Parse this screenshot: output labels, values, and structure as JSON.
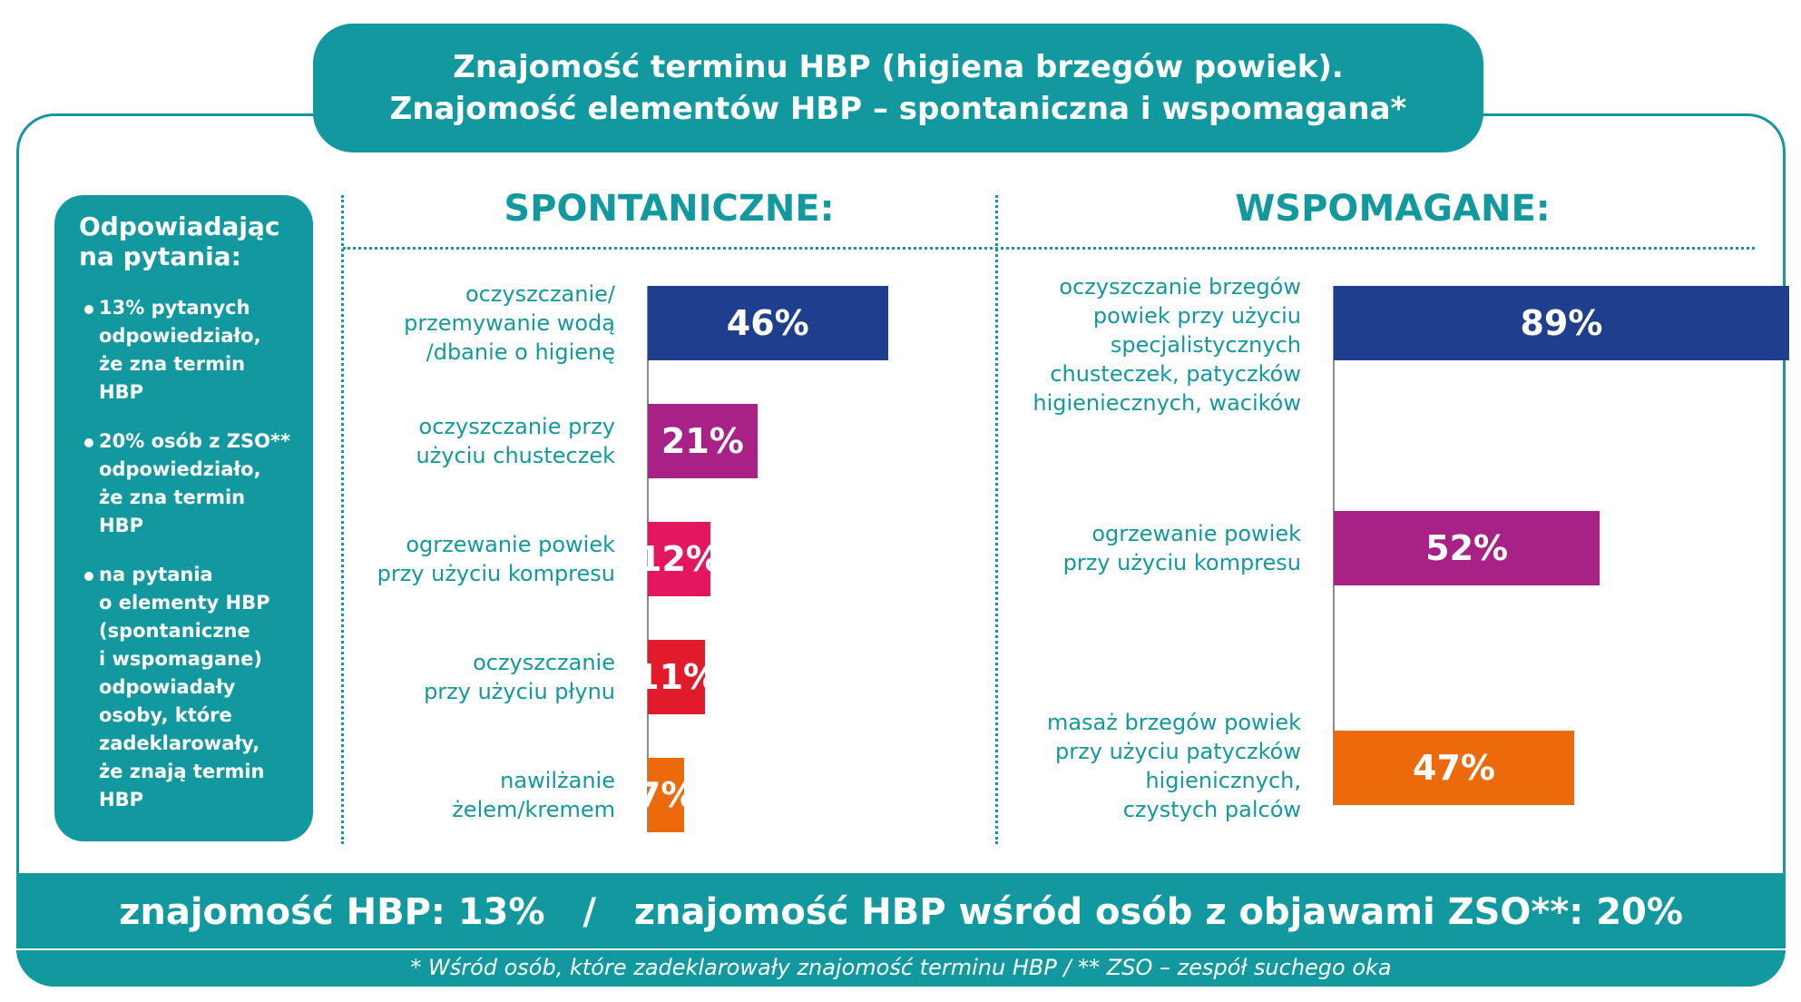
{
  "title": {
    "line1": "Znajomość terminu HBP (higiena brzegów powiek).",
    "line2": "Znajomość elementów HBP – spontaniczna i wspomagana*"
  },
  "sidebar": {
    "title": "Odpowiadając\nna pytania:",
    "items": [
      {
        "text": "13% pytanych\nodpowiedziało,\nże zna termin\nHBP"
      },
      {
        "text": "20% osób z ZSO**\nodpowiedziało,\nże zna termin\nHBP"
      },
      {
        "text": "na pytania\no elementy HBP\n(spontaniczne\ni wspomagane)\nodpowiadały\nosoby, które\nzadeklarowały,\nże znają termin\nHBP"
      }
    ]
  },
  "summary": "znajomość HBP: 13%   /   znajomość HBP wśród osób z objawami ZSO**: 20%",
  "footnote": "* Wśród osób, które zadeklarowały znajomość terminu HBP / ** ZSO – zespół suchego oka",
  "chart_data": [
    {
      "type": "bar",
      "orientation": "horizontal",
      "title": "SPONTANICZNE:",
      "unit": "%",
      "categories": [
        "oczyszczanie/\nprzemywanie wodą\n/dbanie o higienę",
        "oczyszczanie przy\nużyciu chusteczek",
        "ogrzewanie powiek\nprzy użyciu kompresu",
        "oczyszczanie\nprzy użyciu płynu",
        "nawilżanie\nżelem/kremem"
      ],
      "values": [
        46,
        21,
        12,
        11,
        7
      ],
      "value_labels": [
        "46%",
        "21%",
        "12%",
        "11%",
        "7%"
      ],
      "colors": [
        "#1d3f8e",
        "#a72186",
        "#e3165f",
        "#e11a2c",
        "#ec6a0c"
      ],
      "xlim": [
        0,
        100
      ]
    },
    {
      "type": "bar",
      "orientation": "horizontal",
      "title": "WSPOMAGANE:",
      "unit": "%",
      "categories": [
        "oczyszczanie brzegów\npowiek przy użyciu\nspecjalistycznych\nchusteczek, patyczków\nhigieniecznych, wacików",
        "ogrzewanie powiek\nprzy użyciu kompresu",
        "masaż brzegów powiek\nprzy użyciu patyczków\nhigienicznych,\nczystych palców"
      ],
      "values": [
        89,
        52,
        47
      ],
      "value_labels": [
        "89%",
        "52%",
        "47%"
      ],
      "colors": [
        "#1d3f8e",
        "#a72186",
        "#ec6a0c"
      ],
      "xlim": [
        0,
        100
      ]
    }
  ]
}
